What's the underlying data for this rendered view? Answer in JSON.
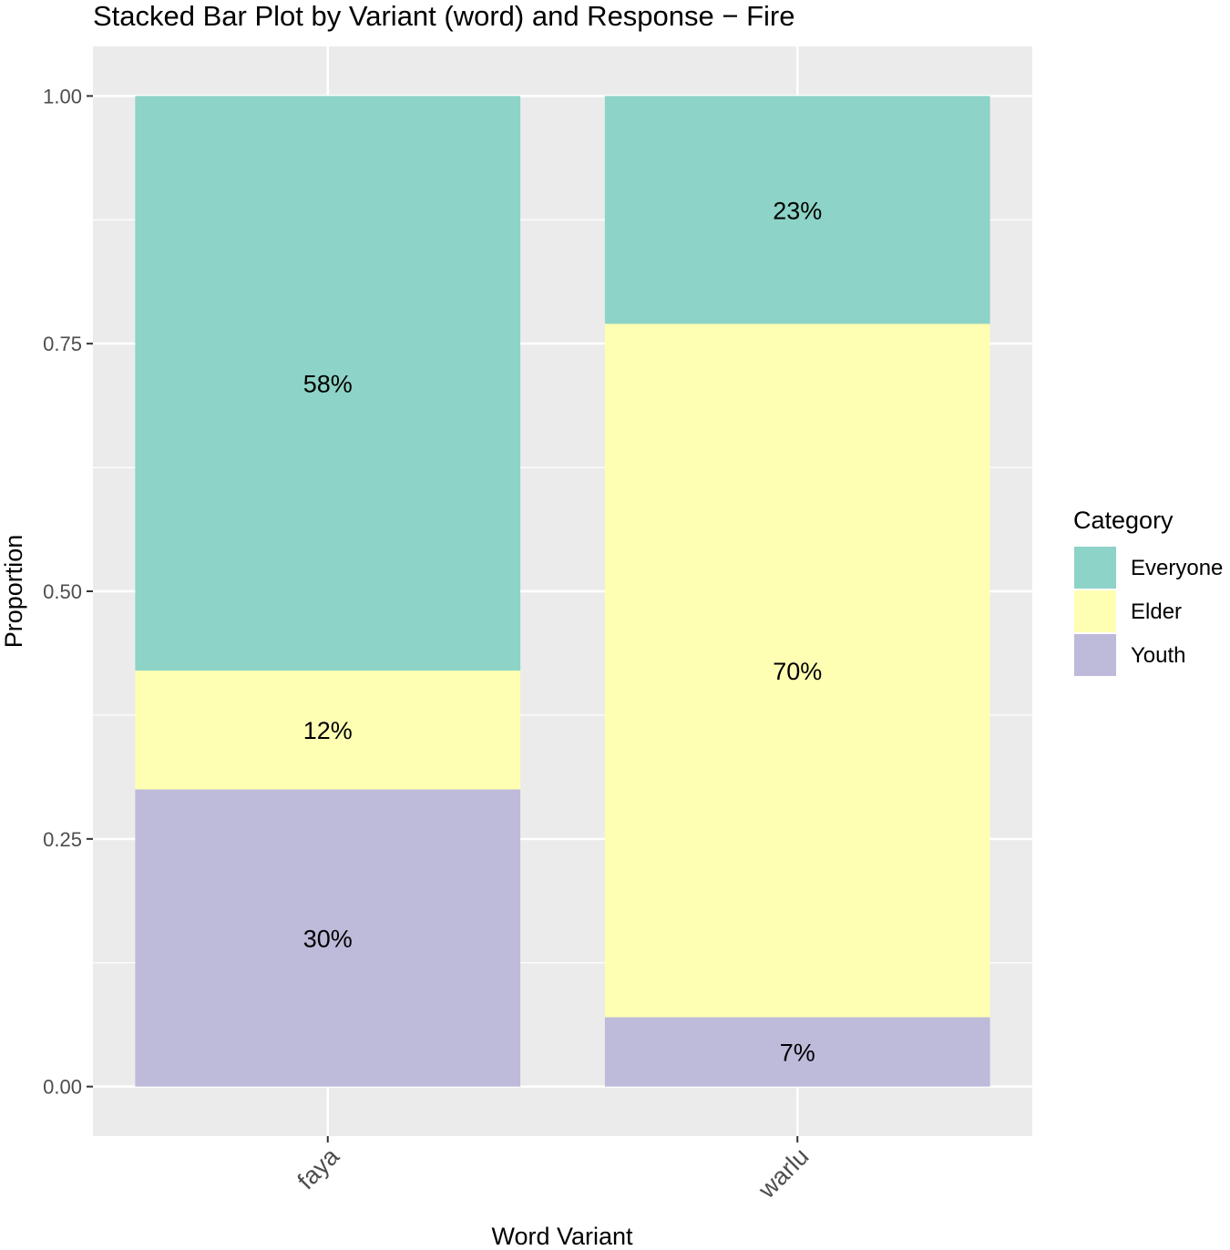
{
  "chart_data": {
    "type": "bar",
    "stacked": true,
    "title": "Stacked Bar Plot by Variant (word) and Response − Fire",
    "xlabel": "Word Variant",
    "ylabel": "Proportion",
    "ylim": [
      -0.05,
      1.05
    ],
    "yticks": [
      0,
      0.25,
      0.5,
      0.75,
      1.0
    ],
    "ytick_labels": [
      "0.00",
      "0.25",
      "0.50",
      "0.75",
      "1.00"
    ],
    "categories": [
      "faya",
      "warlu"
    ],
    "grid": true,
    "legend": {
      "title": "Category",
      "position": "right"
    },
    "series": [
      {
        "name": "Youth",
        "values": [
          0.3,
          0.07
        ],
        "labels": [
          "30%",
          "7%"
        ],
        "color": "#BEBADA"
      },
      {
        "name": "Elder",
        "values": [
          0.12,
          0.7
        ],
        "labels": [
          "12%",
          "70%"
        ],
        "color": "#FFFFB3"
      },
      {
        "name": "Everyone",
        "values": [
          0.58,
          0.23
        ],
        "labels": [
          "58%",
          "23%"
        ],
        "color": "#8DD3C7"
      }
    ],
    "legend_order": [
      "Everyone",
      "Elder",
      "Youth"
    ],
    "colors": {
      "panel": "#EBEBEB",
      "grid": "#FFFFFF",
      "text": "#000000",
      "axis_text": "#4D4D4D"
    }
  }
}
